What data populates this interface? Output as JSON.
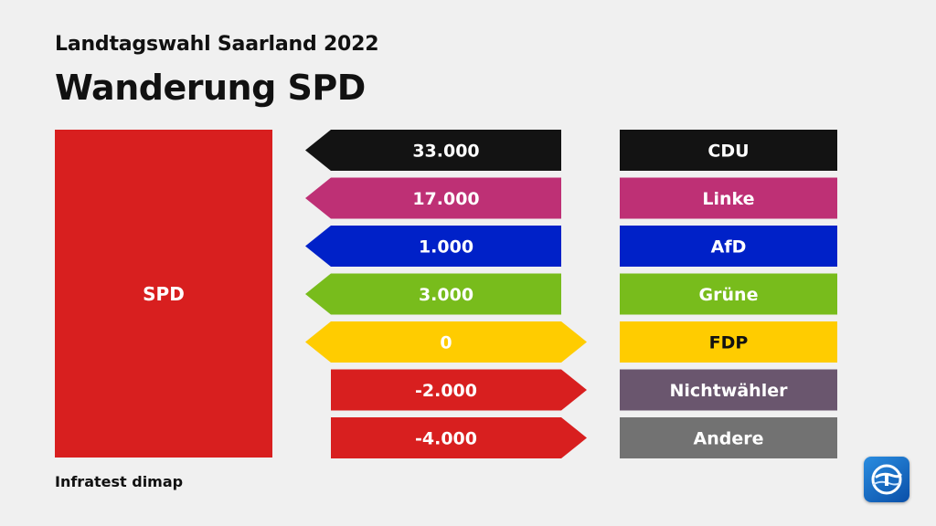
{
  "header": {
    "subtitle": "Landtagswahl Saarland 2022",
    "title": "Wanderung SPD"
  },
  "party": {
    "label": "SPD",
    "color": "#d81f1f"
  },
  "source": "Infratest dimap",
  "logo": {
    "icon": "tagesschau-logo-icon"
  },
  "chart_data": {
    "type": "bar",
    "title": "Wanderung SPD",
    "subtitle": "Landtagswahl Saarland 2022",
    "categories": [
      "CDU",
      "Linke",
      "AfD",
      "Grüne",
      "FDP",
      "Nichtwähler",
      "Andere"
    ],
    "values": [
      33000,
      17000,
      1000,
      3000,
      0,
      -2000,
      -4000
    ],
    "value_labels": [
      "33.000",
      "17.000",
      "1.000",
      "3.000",
      "0",
      "-2.000",
      "-4.000"
    ],
    "colors": [
      "#131313",
      "#be3075",
      "#0021c8",
      "#78bc1c",
      "#ffcc00",
      "#6a566e",
      "#727272"
    ],
    "value_colors": [
      "#131313",
      "#be3075",
      "#0021c8",
      "#78bc1c",
      "#ffcc00",
      "#d81f1f",
      "#d81f1f"
    ],
    "value_text_colors": [
      "#ffffff",
      "#ffffff",
      "#ffffff",
      "#ffffff",
      "#ffffff",
      "#ffffff",
      "#ffffff"
    ],
    "label_text_colors": [
      "#ffffff",
      "#ffffff",
      "#ffffff",
      "#ffffff",
      "#111111",
      "#ffffff",
      "#ffffff"
    ],
    "direction_note": "positive values point toward the party box; negative values point away; zero points both ways"
  }
}
